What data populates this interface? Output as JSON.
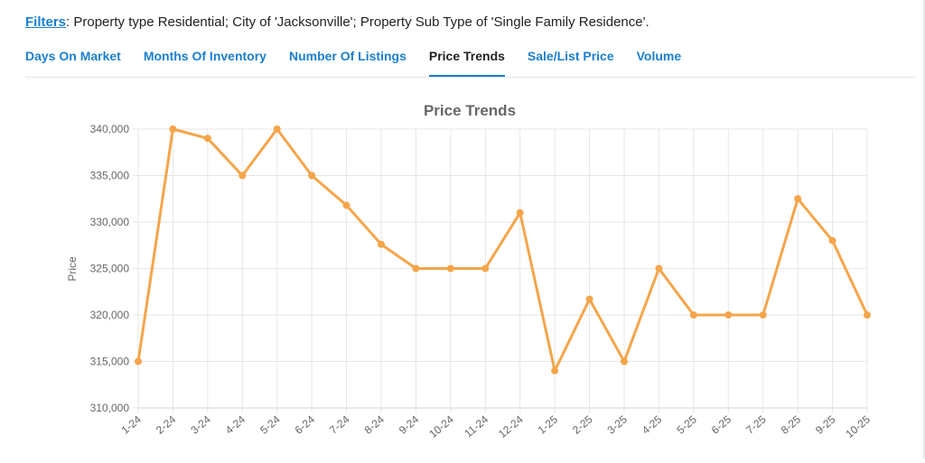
{
  "filters": {
    "label": "Filters",
    "text": ": Property type Residential; City of 'Jacksonville'; Property Sub Type of 'Single Family Residence'."
  },
  "tabs": [
    {
      "label": "Days On Market",
      "active": false
    },
    {
      "label": "Months Of Inventory",
      "active": false
    },
    {
      "label": "Number Of Listings",
      "active": false
    },
    {
      "label": "Price Trends",
      "active": true
    },
    {
      "label": "Sale/List Price",
      "active": false
    },
    {
      "label": "Volume",
      "active": false
    }
  ],
  "colors": {
    "accent": "#1a7fd0",
    "line": "#f5a54a",
    "grid": "#e6e6e6"
  },
  "chart_data": {
    "type": "line",
    "title": "Price Trends",
    "xlabel": "",
    "ylabel": "Price",
    "categories": [
      "1-24",
      "2-24",
      "3-24",
      "4-24",
      "5-24",
      "6-24",
      "7-24",
      "8-24",
      "9-24",
      "10-24",
      "11-24",
      "12-24",
      "1-25",
      "2-25",
      "3-25",
      "4-25",
      "5-25",
      "6-25",
      "7-25",
      "8-25",
      "9-25",
      "10-25"
    ],
    "series": [
      {
        "values": [
          315000,
          340000,
          339000,
          335000,
          340000,
          335000,
          331800,
          327600,
          325000,
          325000,
          325000,
          331000,
          314000,
          321700,
          315000,
          325000,
          320000,
          320000,
          320000,
          332500,
          328000,
          320000
        ]
      }
    ],
    "ylim": [
      310000,
      340000
    ],
    "yticks": [
      310000,
      315000,
      320000,
      325000,
      330000,
      335000,
      340000
    ],
    "ytick_labels": [
      "310,000",
      "315,000",
      "320,000",
      "325,000",
      "330,000",
      "335,000",
      "340,000"
    ],
    "grid": true,
    "legend": "none"
  }
}
